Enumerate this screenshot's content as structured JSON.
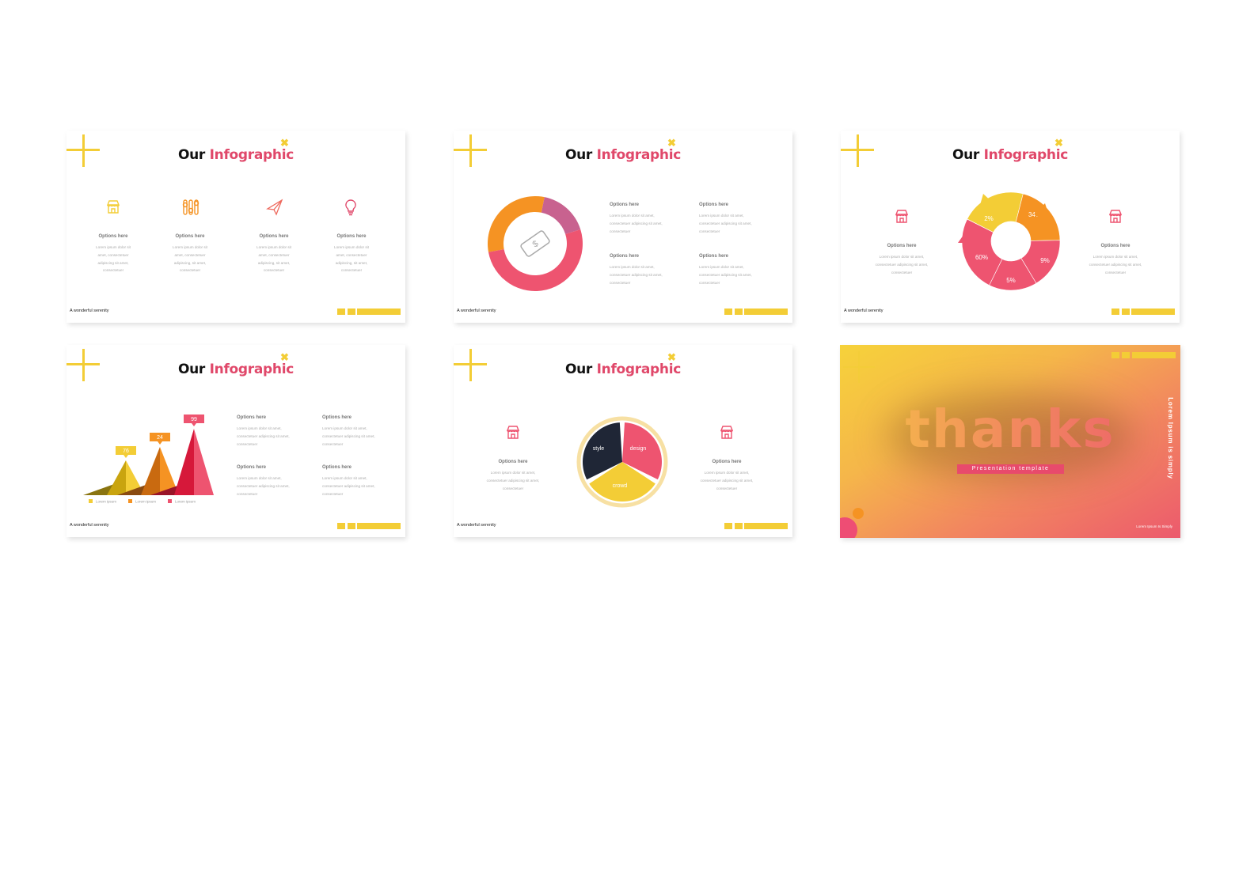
{
  "common": {
    "title_part1": "Our",
    "title_part2": "Infographic",
    "footer": "A wonderful serenity",
    "option_label": "Options here"
  },
  "colors": {
    "yellow": "#f3cd36",
    "orange": "#f59323",
    "pink": "#ee5470",
    "purple": "#c8628f",
    "navy": "#1f2636",
    "cream": "#f7e0a3"
  },
  "slide1": {
    "items": [
      {
        "icon": "store-icon",
        "label": "Options here",
        "text": "Lorem ipsum dolor sit amet, consectetuer adipiscing sit amet, consectetuer"
      },
      {
        "icon": "sliders-icon",
        "label": "Options here",
        "text": "Lorem ipsum dolor sit amet, consectetuer adipiscing, sit amet, consectetuer"
      },
      {
        "icon": "paper-plane-icon",
        "label": "Options here",
        "text": "Lorem ipsum dolor sit amet, consectetuer adipiscing, sit amet, consectetuer"
      },
      {
        "icon": "lightbulb-icon",
        "label": "Options here",
        "text": "Lorem ipsum dolor sit amet, consectetuer adipiscing, sit amet, consectetuer"
      }
    ]
  },
  "slide2": {
    "donut": [
      {
        "color": "#f59323",
        "share": 0.31
      },
      {
        "color": "#c8628f",
        "share": 0.17
      },
      {
        "color": "#ee5470",
        "share": 0.52
      }
    ],
    "center_icon": "dollar-bill-icon",
    "items": [
      {
        "label": "Options here",
        "text": "Lorem ipsum dolor sit amet, consectetuer adipiscing sit amet, consectetuer"
      },
      {
        "label": "Options here",
        "text": "Lorem ipsum dolor sit amet, consectetuer adipiscing sit amet, consectetuer"
      },
      {
        "label": "Options here",
        "text": "Lorem ipsum dolor sit amet, consectetuer adipiscing sit amet, consectetuer"
      },
      {
        "label": "Options here",
        "text": "Lorem ipsum dolor sit amet, consectetuer adipiscing sit amet, consectetuer"
      }
    ]
  },
  "slide3": {
    "cycle": [
      {
        "label": "2%",
        "color": "#f3cd36"
      },
      {
        "label": "34%",
        "color": "#f59323"
      },
      {
        "label": "9%",
        "color": "#ee5470"
      },
      {
        "label": "5%",
        "color": "#ee5470"
      },
      {
        "label": "60%",
        "color": "#ee5470"
      }
    ],
    "items": [
      {
        "label": "Options here",
        "text": "Lorem ipsum dolor sit amet, consectetuer adipiscing sit amet, consectetuer"
      },
      {
        "label": "Options here",
        "text": "Lorem ipsum dolor sit amet, consectetuer adipiscing sit amet, consectetuer"
      }
    ]
  },
  "slide4": {
    "chart_data": {
      "type": "bar",
      "categories": [
        "Lorem ipsum",
        "Lorem ipsum",
        "Lorem ipsum"
      ],
      "values": [
        76,
        24,
        99
      ],
      "colors": [
        "#f3cd36",
        "#f59323",
        "#ee5470"
      ],
      "legend_position": "bottom"
    },
    "items": [
      {
        "label": "Options here",
        "text": "Lorem ipsum dolor sit amet, consectetuer adipiscing sit amet, consectetuer"
      },
      {
        "label": "Options here",
        "text": "Lorem ipsum dolor sit amet, consectetuer adipiscing sit amet, consectetuer"
      },
      {
        "label": "Options here",
        "text": "Lorem ipsum dolor sit amet, consectetuer adipiscing sit amet, consectetuer"
      },
      {
        "label": "Options here",
        "text": "Lorem ipsum dolor sit amet, consectetuer adipiscing sit amet, consectetuer"
      }
    ]
  },
  "slide5": {
    "pie": [
      {
        "label": "design",
        "color": "#ee5470"
      },
      {
        "label": "crowd",
        "color": "#f3cd36"
      },
      {
        "label": "style",
        "color": "#1f2636"
      }
    ],
    "items": [
      {
        "label": "Options here",
        "text": "Lorem ipsum dolor sit amet, consectetuer adipiscing sit amet, consectetuer"
      },
      {
        "label": "Options here",
        "text": "Lorem ipsum dolor sit amet, consectetuer adipiscing sit amet, consectetuer"
      }
    ]
  },
  "slide6": {
    "headline": "thanks",
    "badge": "Presentation template",
    "vertical_text": "Lorem Ipsum is simply",
    "corner_text": "Lorem Ipsum Is Simply"
  }
}
